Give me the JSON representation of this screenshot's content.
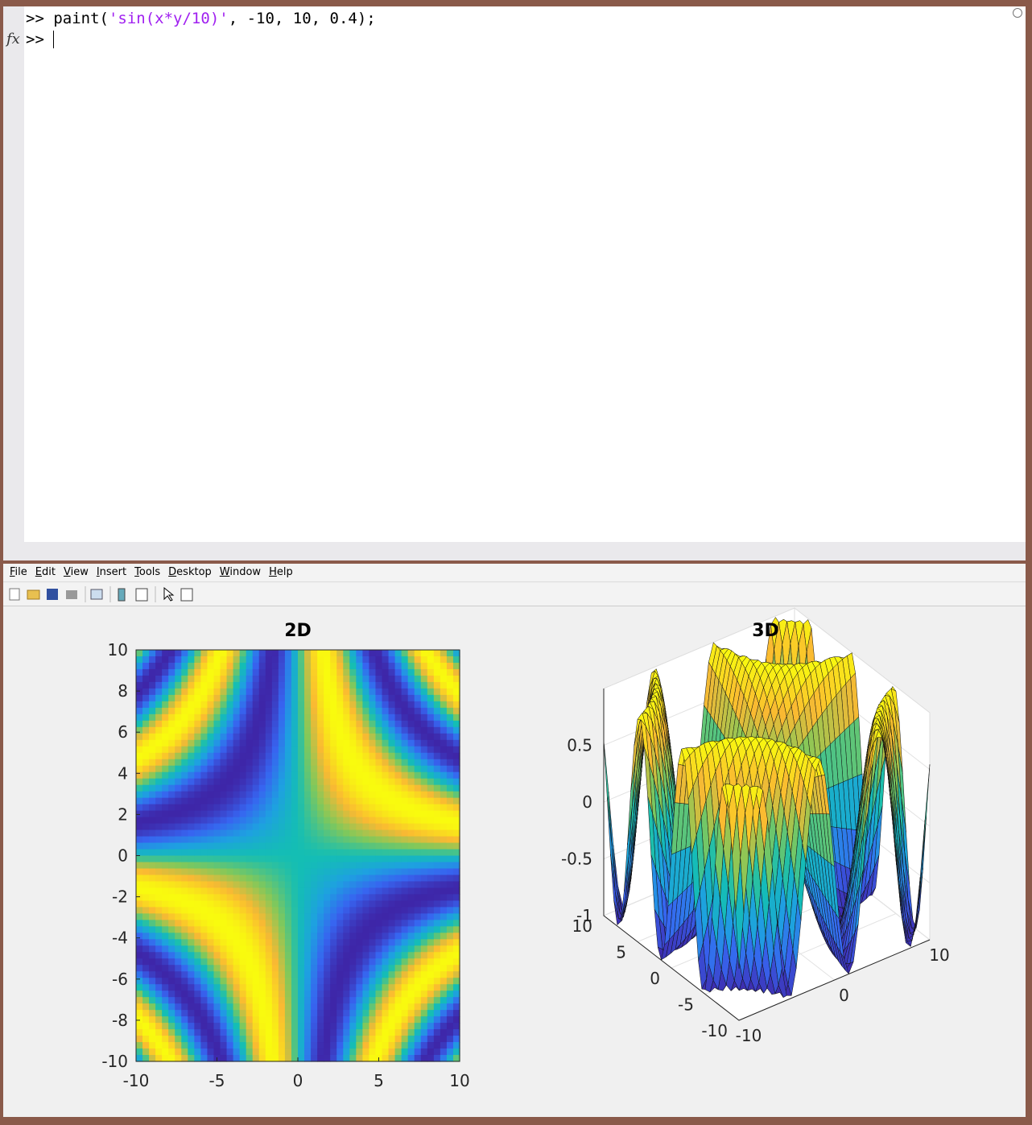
{
  "command_window": {
    "lines": [
      {
        "prompt": ">>",
        "code": "paint(",
        "string": "'sin(x*y/10)'",
        "rest": ", -10, 10, 0.4);"
      },
      {
        "prompt": ">>"
      }
    ],
    "fx": "fx"
  },
  "menu": [
    "File",
    "Edit",
    "View",
    "Insert",
    "Tools",
    "Desktop",
    "Window",
    "Help"
  ],
  "chart_data": [
    {
      "type": "heatmap",
      "title": "2D",
      "xlim": [
        -10,
        10
      ],
      "ylim": [
        -10,
        10
      ],
      "xticks": [
        -10,
        -5,
        0,
        5,
        10
      ],
      "yticks": [
        -10,
        -8,
        -6,
        -4,
        -2,
        0,
        2,
        4,
        6,
        8,
        10
      ]
    },
    {
      "type": "surface",
      "title": "3D",
      "xlim": [
        -10,
        10
      ],
      "ylim": [
        -10,
        10
      ],
      "zlim": [
        -1,
        1
      ],
      "xticks": [
        -10,
        0,
        10
      ],
      "yticks": [
        -10,
        -5,
        0,
        5,
        10
      ],
      "zticks": [
        -1,
        -0.5,
        0,
        0.5
      ]
    }
  ]
}
